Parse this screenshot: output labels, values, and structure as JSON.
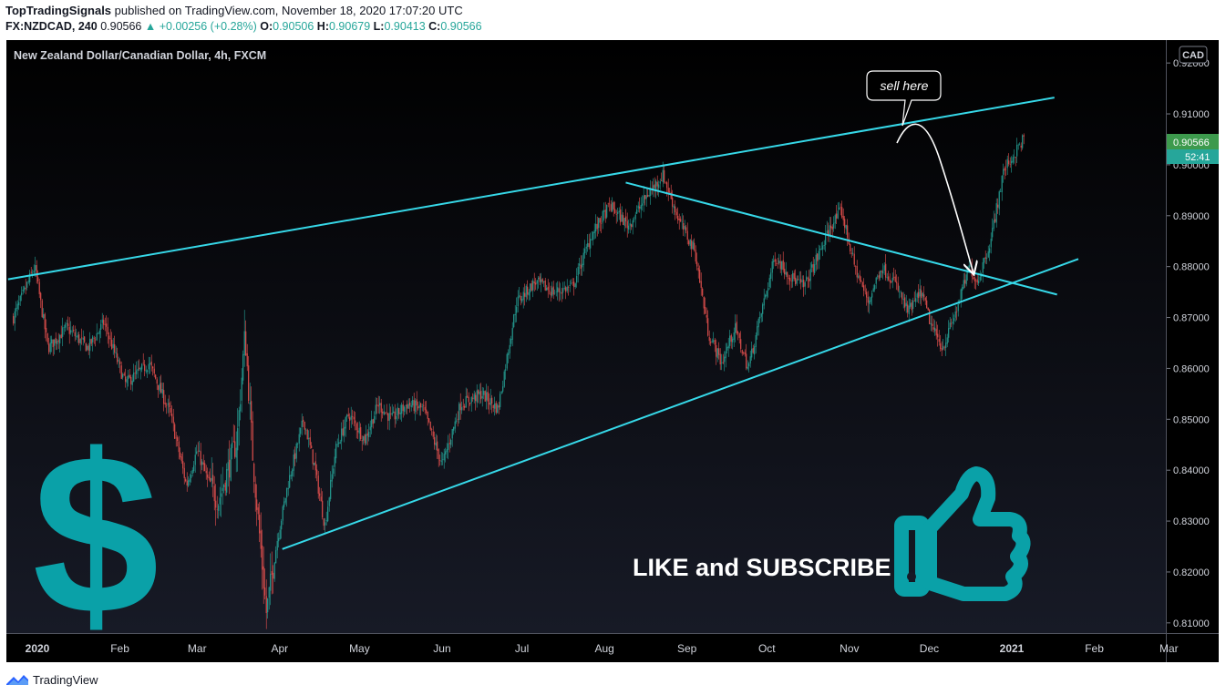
{
  "header": {
    "publisher": "TopTradingSignals",
    "published_text": "published on TradingView.com, November 18, 2020 17:07:20 UTC",
    "symbol": "FX:NZDCAD, 240",
    "price": "0.90566",
    "change": "▲ +0.00256 (+0.28%)",
    "open_label": "O:",
    "open": "0.90506",
    "high_label": "H:",
    "high": "0.90679",
    "low_label": "L:",
    "low": "0.90413",
    "close_label": "C:",
    "close": "0.90566"
  },
  "footer": {
    "brand": "TradingView"
  },
  "chart_data": {
    "type": "candlestick",
    "title": "New Zealand Dollar/Canadian Dollar, 4h, FXCM",
    "currency": "CAD",
    "last_price": "0.90566",
    "countdown": "52:41",
    "ylim": [
      0.808,
      0.9245
    ],
    "y_ticks": [
      "0.92000",
      "0.91000",
      "0.90000",
      "0.89000",
      "0.88000",
      "0.87000",
      "0.86000",
      "0.85000",
      "0.84000",
      "0.83000",
      "0.82000",
      "0.81000"
    ],
    "x_ticks": [
      "2020",
      "Feb",
      "Mar",
      "Apr",
      "May",
      "Jun",
      "Jul",
      "Aug",
      "Sep",
      "Oct",
      "Nov",
      "Dec",
      "2021",
      "Feb",
      "Mar"
    ],
    "price_path": [
      [
        "2019-12-23",
        0.87
      ],
      [
        "2019-12-31",
        0.88
      ],
      [
        "2020-01-05",
        0.864
      ],
      [
        "2020-01-12",
        0.868
      ],
      [
        "2020-01-20",
        0.864
      ],
      [
        "2020-01-26",
        0.869
      ],
      [
        "2020-02-03",
        0.857
      ],
      [
        "2020-02-12",
        0.861
      ],
      [
        "2020-02-20",
        0.851
      ],
      [
        "2020-02-26",
        0.837
      ],
      [
        "2020-03-01",
        0.844
      ],
      [
        "2020-03-05",
        0.838
      ],
      [
        "2020-03-09",
        0.834
      ],
      [
        "2020-03-16",
        0.846
      ],
      [
        "2020-03-19",
        0.867
      ],
      [
        "2020-03-22",
        0.842
      ],
      [
        "2020-03-27",
        0.812
      ],
      [
        "2020-03-31",
        0.826
      ],
      [
        "2020-04-04",
        0.837
      ],
      [
        "2020-04-10",
        0.85
      ],
      [
        "2020-04-14",
        0.841
      ],
      [
        "2020-04-18",
        0.829
      ],
      [
        "2020-04-22",
        0.844
      ],
      [
        "2020-04-27",
        0.851
      ],
      [
        "2020-05-03",
        0.846
      ],
      [
        "2020-05-08",
        0.853
      ],
      [
        "2020-05-13",
        0.85
      ],
      [
        "2020-05-19",
        0.853
      ],
      [
        "2020-05-25",
        0.852
      ],
      [
        "2020-06-01",
        0.841
      ],
      [
        "2020-06-08",
        0.853
      ],
      [
        "2020-06-16",
        0.855
      ],
      [
        "2020-06-22",
        0.852
      ],
      [
        "2020-06-29",
        0.873
      ],
      [
        "2020-07-06",
        0.877
      ],
      [
        "2020-07-13",
        0.875
      ],
      [
        "2020-07-20",
        0.876
      ],
      [
        "2020-07-27",
        0.886
      ],
      [
        "2020-08-03",
        0.892
      ],
      [
        "2020-08-10",
        0.888
      ],
      [
        "2020-08-17",
        0.894
      ],
      [
        "2020-08-23",
        0.898
      ],
      [
        "2020-08-29",
        0.889
      ],
      [
        "2020-09-04",
        0.883
      ],
      [
        "2020-09-09",
        0.867
      ],
      [
        "2020-09-14",
        0.861
      ],
      [
        "2020-09-19",
        0.868
      ],
      [
        "2020-09-24",
        0.86
      ],
      [
        "2020-09-28",
        0.869
      ],
      [
        "2020-10-04",
        0.882
      ],
      [
        "2020-10-10",
        0.878
      ],
      [
        "2020-10-15",
        0.876
      ],
      [
        "2020-10-21",
        0.883
      ],
      [
        "2020-10-25",
        0.888
      ],
      [
        "2020-10-29",
        0.891
      ],
      [
        "2020-11-03",
        0.88
      ],
      [
        "2020-11-08",
        0.873
      ],
      [
        "2020-11-13",
        0.88
      ],
      [
        "2020-11-18",
        0.877
      ],
      [
        "2020-11-23",
        0.871
      ],
      [
        "2020-11-28",
        0.875
      ],
      [
        "2020-12-02",
        0.868
      ],
      [
        "2020-12-06",
        0.864
      ],
      [
        "2020-12-11",
        0.871
      ],
      [
        "2020-12-16",
        0.88
      ],
      [
        "2020-12-19",
        0.877
      ],
      [
        "2020-12-24",
        0.885
      ],
      [
        "2020-12-29",
        0.899
      ],
      [
        "2021-01-02",
        0.902
      ],
      [
        "2021-01-06",
        0.9057
      ]
    ],
    "trendlines": [
      {
        "from": [
          "2019-12-21",
          0.8775
        ],
        "to": [
          "2021-01-17",
          0.9132
        ]
      },
      {
        "from": [
          "2020-08-09",
          0.8965
        ],
        "to": [
          "2021-01-18",
          0.8745
        ]
      },
      {
        "from": [
          "2020-04-02",
          0.8245
        ],
        "to": [
          "2021-01-26",
          0.8815
        ]
      }
    ],
    "annotations": {
      "callout": "sell here",
      "banner": "LIKE and SUBSCRIBE"
    }
  }
}
